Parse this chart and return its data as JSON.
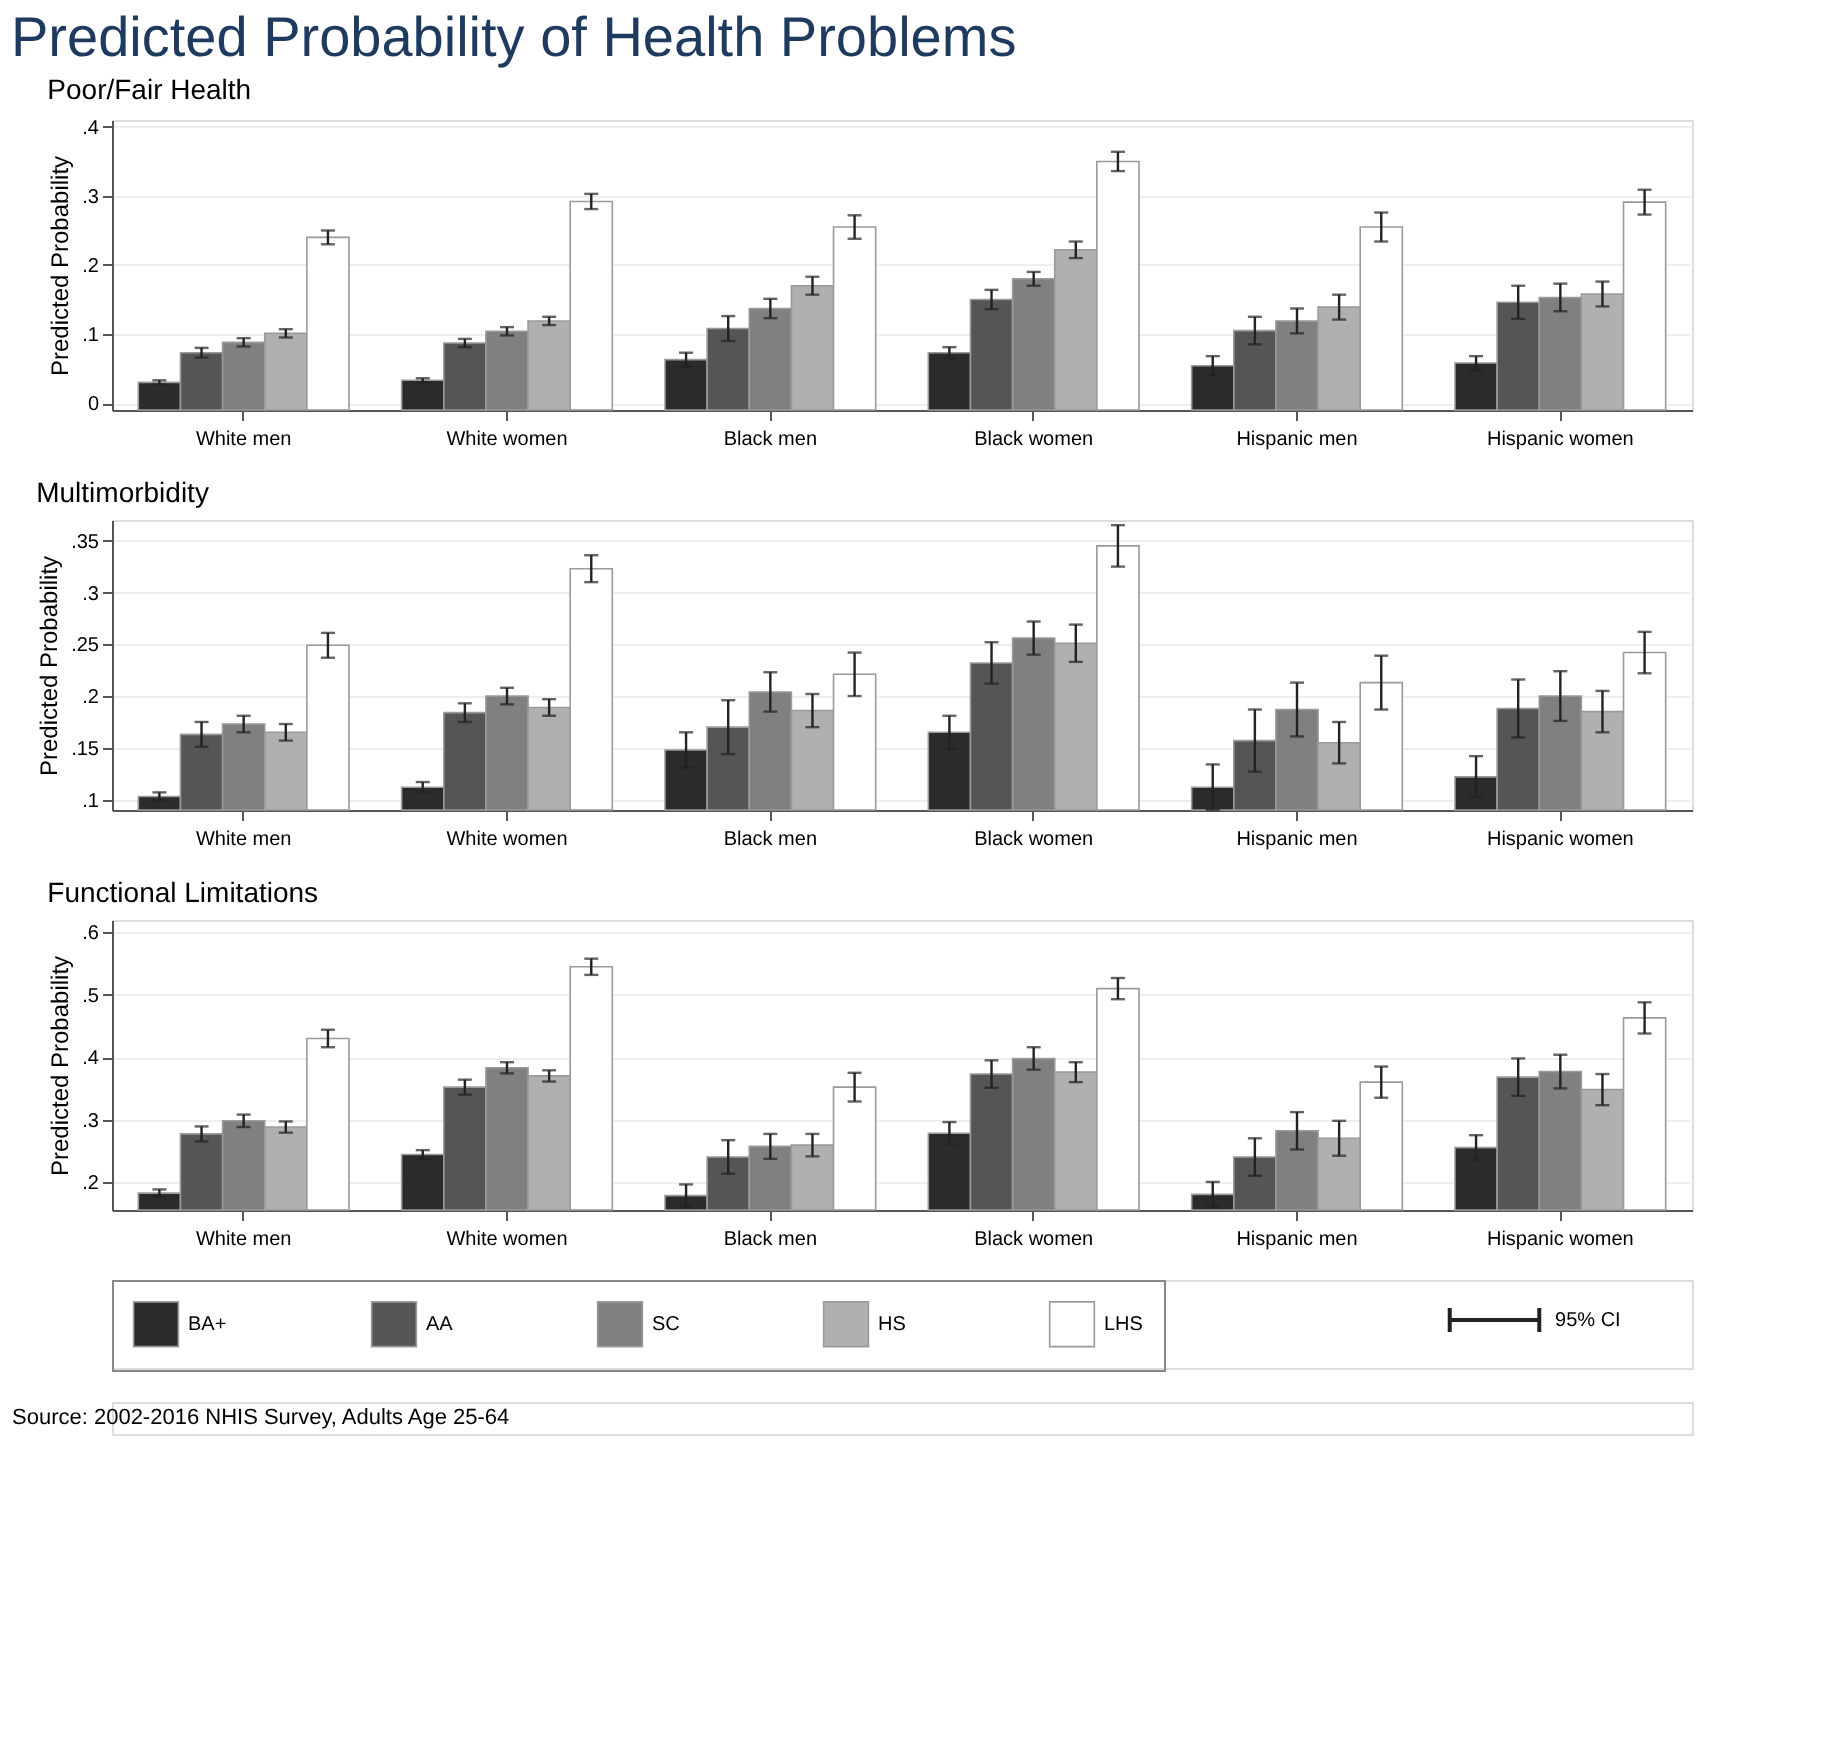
{
  "chart_data": [
    {
      "type": "bar",
      "title": "Predicted Probability of Health Problems",
      "subtitle": "Poor/Fair Health",
      "ylabel": "Predicted Probability",
      "categories": [
        "White men",
        "White women",
        "Black men",
        "Black women",
        "Hispanic men",
        "Hispanic women"
      ],
      "series": [
        {
          "name": "BA+",
          "color": "#2b2b2b",
          "values": [
            0.03,
            0.033,
            0.063,
            0.073,
            0.054,
            0.058
          ],
          "errors": [
            0.003,
            0.003,
            0.01,
            0.008,
            0.014,
            0.01
          ]
        },
        {
          "name": "AA",
          "color": "#555555",
          "values": [
            0.073,
            0.087,
            0.108,
            0.15,
            0.105,
            0.146
          ],
          "errors": [
            0.007,
            0.006,
            0.018,
            0.014,
            0.02,
            0.024
          ]
        },
        {
          "name": "SC",
          "color": "#808080",
          "values": [
            0.088,
            0.104,
            0.137,
            0.18,
            0.119,
            0.153
          ],
          "errors": [
            0.006,
            0.006,
            0.014,
            0.01,
            0.018,
            0.02
          ]
        },
        {
          "name": "HS",
          "color": "#b0b0b0",
          "values": [
            0.101,
            0.119,
            0.17,
            0.222,
            0.139,
            0.158
          ],
          "errors": [
            0.006,
            0.006,
            0.013,
            0.012,
            0.018,
            0.018
          ]
        },
        {
          "name": "LHS",
          "color": "#ffffff",
          "values": [
            0.24,
            0.292,
            0.255,
            0.35,
            0.255,
            0.291
          ],
          "errors": [
            0.01,
            0.011,
            0.017,
            0.014,
            0.021,
            0.018
          ]
        }
      ],
      "legend": "bottom",
      "annotations": [
        "95% CI",
        "Source: 2002-2016 NHIS Survey, Adults Age 25-64"
      ],
      "ylim": [
        -0.01,
        0.41
      ],
      "yticks": [
        {
          "value": 0,
          "label": "0"
        },
        {
          "value": 0.1,
          "label": ".1"
        },
        {
          "value": 0.2,
          "label": ".2"
        },
        {
          "value": 0.3,
          "label": ".3"
        },
        {
          "value": 0.4,
          "label": ".4"
        }
      ],
      "grid": "y"
    },
    {
      "type": "bar",
      "subtitle": "Multimorbidity",
      "ylabel": "Predicted Probability",
      "categories": [
        "White men",
        "White women",
        "Black men",
        "Black women",
        "Hispanic men",
        "Hispanic women"
      ],
      "series": [
        {
          "color": "#2b2b2b",
          "values": [
            0.103,
            0.112,
            0.148,
            0.165,
            0.112,
            0.122
          ],
          "errors": [
            0.004,
            0.005,
            0.017,
            0.016,
            0.022,
            0.02
          ]
        },
        {
          "color": "#555555",
          "values": [
            0.163,
            0.184,
            0.17,
            0.232,
            0.157,
            0.188
          ],
          "errors": [
            0.012,
            0.009,
            0.026,
            0.02,
            0.03,
            0.028
          ]
        },
        {
          "color": "#808080",
          "values": [
            0.173,
            0.2,
            0.204,
            0.256,
            0.187,
            0.2
          ],
          "errors": [
            0.008,
            0.008,
            0.019,
            0.016,
            0.026,
            0.024
          ]
        },
        {
          "color": "#b0b0b0",
          "values": [
            0.165,
            0.189,
            0.186,
            0.251,
            0.155,
            0.185
          ],
          "errors": [
            0.008,
            0.008,
            0.016,
            0.018,
            0.02,
            0.02
          ]
        },
        {
          "color": "#ffffff",
          "values": [
            0.249,
            0.323,
            0.221,
            0.345,
            0.213,
            0.242
          ],
          "errors": [
            0.012,
            0.013,
            0.021,
            0.02,
            0.026,
            0.02
          ]
        }
      ],
      "ylim": [
        0.09,
        0.37
      ],
      "yticks": [
        {
          "value": 0.1,
          "label": ".1"
        },
        {
          "value": 0.15,
          "label": ".15"
        },
        {
          "value": 0.2,
          "label": ".2"
        },
        {
          "value": 0.25,
          "label": ".25"
        },
        {
          "value": 0.3,
          "label": ".3"
        },
        {
          "value": 0.35,
          "label": ".35"
        }
      ],
      "grid": "y"
    },
    {
      "type": "bar",
      "subtitle": "Functional Limitations",
      "ylabel": "Predicted Probability",
      "categories": [
        "White men",
        "White women",
        "Black men",
        "Black women",
        "Hispanic men",
        "Hispanic women"
      ],
      "series": [
        {
          "color": "#2b2b2b",
          "values": [
            0.182,
            0.244,
            0.178,
            0.278,
            0.18,
            0.255
          ],
          "errors": [
            0.006,
            0.007,
            0.018,
            0.018,
            0.02,
            0.02
          ]
        },
        {
          "color": "#555555",
          "values": [
            0.277,
            0.352,
            0.24,
            0.373,
            0.24,
            0.368
          ],
          "errors": [
            0.012,
            0.012,
            0.027,
            0.022,
            0.03,
            0.03
          ]
        },
        {
          "color": "#808080",
          "values": [
            0.298,
            0.383,
            0.257,
            0.398,
            0.282,
            0.377
          ],
          "errors": [
            0.01,
            0.009,
            0.02,
            0.018,
            0.03,
            0.027
          ]
        },
        {
          "color": "#b0b0b0",
          "values": [
            0.288,
            0.37,
            0.259,
            0.376,
            0.27,
            0.348
          ],
          "errors": [
            0.009,
            0.009,
            0.018,
            0.016,
            0.028,
            0.025
          ]
        },
        {
          "color": "#ffffff",
          "values": [
            0.43,
            0.545,
            0.352,
            0.51,
            0.36,
            0.463
          ],
          "errors": [
            0.014,
            0.013,
            0.023,
            0.017,
            0.025,
            0.025
          ]
        }
      ],
      "ylim": [
        0.155,
        0.62
      ],
      "yticks": [
        {
          "value": 0.2,
          "label": ".2"
        },
        {
          "value": 0.3,
          "label": ".3"
        },
        {
          "value": 0.4,
          "label": ".4"
        },
        {
          "value": 0.5,
          "label": ".5"
        },
        {
          "value": 0.6,
          "label": ".6"
        }
      ],
      "grid": "y"
    }
  ]
}
